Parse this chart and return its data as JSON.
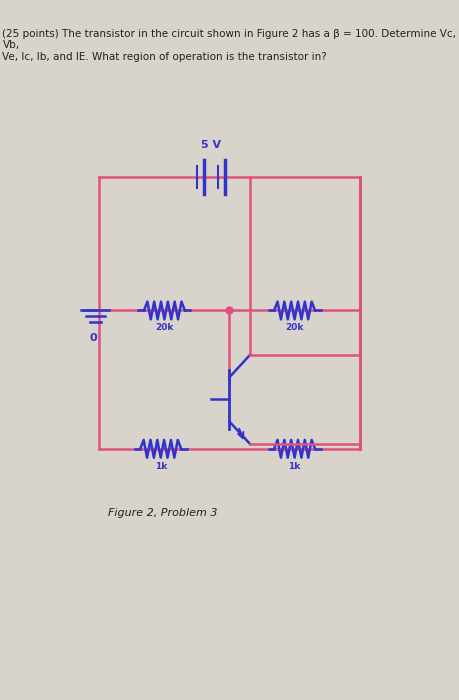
{
  "title_text": "(25 points) The transistor in the circuit shown in Figure 2 has a β = 100. Determine Vc, Vb,\nVe, Ic, Ib, and IE. What region of operation is the transistor in?",
  "fig_label": "Figure 2, Problem 3",
  "battery_label": "5 V",
  "r1_label": "20k",
  "r2_label": "20k",
  "r3_label": "1k",
  "r4_label": "1k",
  "ground_label": "0",
  "circuit_color": "#e05080",
  "component_color": "#3333cc",
  "bg_color": "#d8d4cb",
  "text_color": "#222222"
}
